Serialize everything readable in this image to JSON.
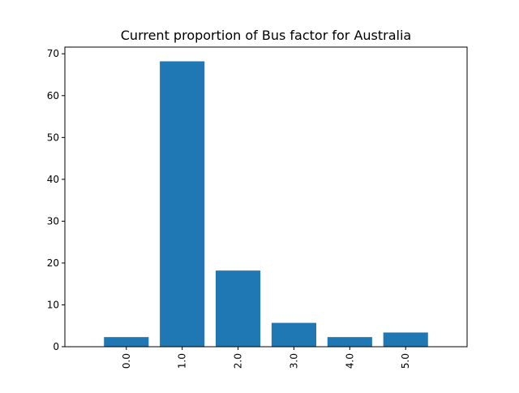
{
  "chart_data": {
    "type": "bar",
    "title": "Current proportion of Bus factor for Australia",
    "xlabel": "",
    "ylabel": "",
    "categories": [
      "0.0",
      "1.0",
      "2.0",
      "3.0",
      "4.0",
      "5.0"
    ],
    "values": [
      2.3,
      68.2,
      18.2,
      5.7,
      2.3,
      3.4
    ],
    "ylim": [
      0,
      71.6
    ],
    "yticks": [
      0,
      10,
      20,
      30,
      40,
      50,
      60,
      70
    ],
    "bar_color": "#1f77b4",
    "grid": false,
    "legend": "none",
    "xtick_rotation": "vertical"
  }
}
